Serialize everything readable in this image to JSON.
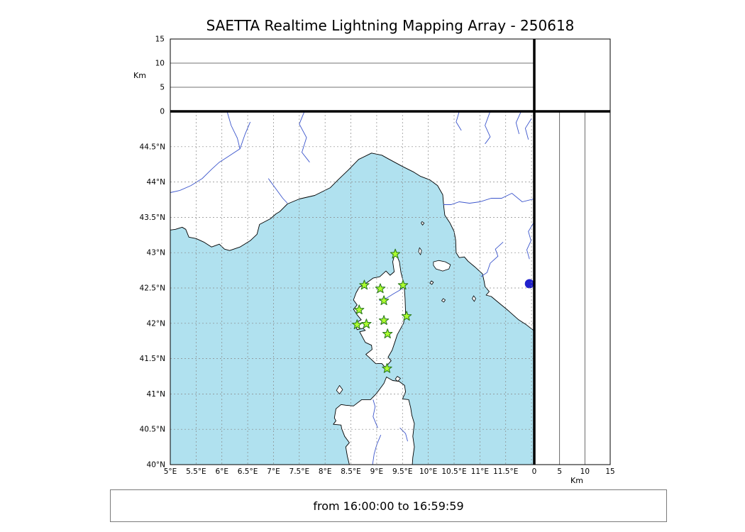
{
  "title": "SAETTA Realtime Lightning Mapping Array - 250618",
  "footer": {
    "text": "from 16:00:00 to 16:59:59"
  },
  "colors": {
    "sea": "#b0e1ef",
    "land": "#ffffff",
    "coast": "#000000",
    "river": "#3b55cc",
    "grid": "#888888",
    "lake": "#2020cc",
    "station_fill": "#adff2f",
    "station_edge": "#2c7a1e",
    "frame": "#000000",
    "alt_grid": "#444444"
  },
  "map": {
    "extent": {
      "lon_min": 5.0,
      "lon_max": 12.04,
      "lat_min": 40.0,
      "lat_max": 45.0
    },
    "grid_step_deg": 0.5,
    "x_ticks": [
      {
        "value": 5,
        "label": "5°E"
      },
      {
        "value": 5.5,
        "label": "5.5°E"
      },
      {
        "value": 6,
        "label": "6°E"
      },
      {
        "value": 6.5,
        "label": "6.5°E"
      },
      {
        "value": 7,
        "label": "7°E"
      },
      {
        "value": 7.5,
        "label": "7.5°E"
      },
      {
        "value": 8,
        "label": "8°E"
      },
      {
        "value": 8.5,
        "label": "8.5°E"
      },
      {
        "value": 9,
        "label": "9°E"
      },
      {
        "value": 9.5,
        "label": "9.5°E"
      },
      {
        "value": 10,
        "label": "10°E"
      },
      {
        "value": 10.5,
        "label": "10.5°E"
      },
      {
        "value": 11,
        "label": "11°E"
      },
      {
        "value": 11.5,
        "label": "11.5°E"
      }
    ],
    "y_ticks": [
      {
        "value": 44.5,
        "label": "44.5°N"
      },
      {
        "value": 44,
        "label": "44°N"
      },
      {
        "value": 43.5,
        "label": "43.5°N"
      },
      {
        "value": 43,
        "label": "43°N"
      },
      {
        "value": 42.5,
        "label": "42.5°N"
      },
      {
        "value": 42,
        "label": "42°N"
      },
      {
        "value": 41.5,
        "label": "41.5°N"
      },
      {
        "value": 41,
        "label": "41°N"
      },
      {
        "value": 40.5,
        "label": "40.5°N"
      },
      {
        "value": 40,
        "label": "40°N"
      }
    ],
    "stations": [
      {
        "lon": 9.36,
        "lat": 42.98
      },
      {
        "lon": 8.76,
        "lat": 42.54
      },
      {
        "lon": 9.07,
        "lat": 42.49
      },
      {
        "lon": 9.51,
        "lat": 42.54
      },
      {
        "lon": 9.14,
        "lat": 42.32
      },
      {
        "lon": 8.66,
        "lat": 42.19
      },
      {
        "lon": 9.58,
        "lat": 42.1
      },
      {
        "lon": 8.62,
        "lat": 41.98
      },
      {
        "lon": 8.8,
        "lat": 41.99
      },
      {
        "lon": 9.14,
        "lat": 42.04
      },
      {
        "lon": 9.21,
        "lat": 41.85
      },
      {
        "lon": 9.2,
        "lat": 41.36
      }
    ],
    "lake_point": {
      "lon": 11.96,
      "lat": 42.56
    }
  },
  "altitude_axis": {
    "unit_label": "Km",
    "min": 0,
    "max": 15,
    "ticks": [
      {
        "value": 0,
        "label": "0"
      },
      {
        "value": 5,
        "label": "5"
      },
      {
        "value": 10,
        "label": "10"
      },
      {
        "value": 15,
        "label": "15"
      }
    ],
    "grid_values": [
      5,
      10
    ]
  },
  "geo": {
    "mainland": [
      [
        5.0,
        43.32
      ],
      [
        5.1,
        43.33
      ],
      [
        5.23,
        43.36
      ],
      [
        5.3,
        43.33
      ],
      [
        5.36,
        43.22
      ],
      [
        5.5,
        43.2
      ],
      [
        5.65,
        43.15
      ],
      [
        5.8,
        43.08
      ],
      [
        5.95,
        43.12
      ],
      [
        6.05,
        43.05
      ],
      [
        6.15,
        43.03
      ],
      [
        6.35,
        43.08
      ],
      [
        6.55,
        43.17
      ],
      [
        6.68,
        43.26
      ],
      [
        6.73,
        43.4
      ],
      [
        6.94,
        43.48
      ],
      [
        7.05,
        43.55
      ],
      [
        7.12,
        43.58
      ],
      [
        7.27,
        43.69
      ],
      [
        7.5,
        43.76
      ],
      [
        7.8,
        43.81
      ],
      [
        8.1,
        43.92
      ],
      [
        8.25,
        44.03
      ],
      [
        8.45,
        44.17
      ],
      [
        8.65,
        44.32
      ],
      [
        8.9,
        44.41
      ],
      [
        9.1,
        44.38
      ],
      [
        9.22,
        44.33
      ],
      [
        9.5,
        44.22
      ],
      [
        9.72,
        44.14
      ],
      [
        9.85,
        44.08
      ],
      [
        10.03,
        44.03
      ],
      [
        10.18,
        43.95
      ],
      [
        10.28,
        43.82
      ],
      [
        10.3,
        43.65
      ],
      [
        10.32,
        43.53
      ],
      [
        10.42,
        43.42
      ],
      [
        10.5,
        43.3
      ],
      [
        10.53,
        43.18
      ],
      [
        10.54,
        43.0
      ],
      [
        10.6,
        42.93
      ],
      [
        10.7,
        42.94
      ],
      [
        10.77,
        42.88
      ],
      [
        10.9,
        42.8
      ],
      [
        11.05,
        42.7
      ],
      [
        11.08,
        42.6
      ],
      [
        11.1,
        42.52
      ],
      [
        11.18,
        42.45
      ],
      [
        11.12,
        42.4
      ],
      [
        11.22,
        42.38
      ],
      [
        11.35,
        42.3
      ],
      [
        11.55,
        42.18
      ],
      [
        11.75,
        42.05
      ],
      [
        11.9,
        41.98
      ],
      [
        12.04,
        41.9
      ],
      [
        12.04,
        45.0
      ],
      [
        5.0,
        45.0
      ]
    ],
    "corsica": [
      [
        9.36,
        43.01
      ],
      [
        9.44,
        42.87
      ],
      [
        9.47,
        42.72
      ],
      [
        9.53,
        42.55
      ],
      [
        9.55,
        42.35
      ],
      [
        9.56,
        42.15
      ],
      [
        9.52,
        42.0
      ],
      [
        9.4,
        41.84
      ],
      [
        9.35,
        41.73
      ],
      [
        9.3,
        41.62
      ],
      [
        9.22,
        41.52
      ],
      [
        9.28,
        41.47
      ],
      [
        9.22,
        41.42
      ],
      [
        9.16,
        41.38
      ],
      [
        9.1,
        41.43
      ],
      [
        8.98,
        41.43
      ],
      [
        8.88,
        41.5
      ],
      [
        8.79,
        41.56
      ],
      [
        8.91,
        41.63
      ],
      [
        8.9,
        41.69
      ],
      [
        8.78,
        41.73
      ],
      [
        8.67,
        41.88
      ],
      [
        8.78,
        41.9
      ],
      [
        8.73,
        41.93
      ],
      [
        8.62,
        41.91
      ],
      [
        8.58,
        42.0
      ],
      [
        8.7,
        42.05
      ],
      [
        8.62,
        42.12
      ],
      [
        8.55,
        42.2
      ],
      [
        8.62,
        42.26
      ],
      [
        8.55,
        42.33
      ],
      [
        8.6,
        42.43
      ],
      [
        8.66,
        42.51
      ],
      [
        8.8,
        42.57
      ],
      [
        8.93,
        42.64
      ],
      [
        9.06,
        42.66
      ],
      [
        9.18,
        42.74
      ],
      [
        9.26,
        42.68
      ],
      [
        9.34,
        42.73
      ],
      [
        9.31,
        42.87
      ]
    ],
    "sardinia": [
      [
        8.47,
        40.0
      ],
      [
        8.43,
        40.12
      ],
      [
        8.4,
        40.25
      ],
      [
        8.47,
        40.31
      ],
      [
        8.38,
        40.4
      ],
      [
        8.32,
        40.51
      ],
      [
        8.31,
        40.56
      ],
      [
        8.16,
        40.57
      ],
      [
        8.21,
        40.62
      ],
      [
        8.18,
        40.66
      ],
      [
        8.21,
        40.79
      ],
      [
        8.31,
        40.85
      ],
      [
        8.4,
        40.84
      ],
      [
        8.55,
        40.83
      ],
      [
        8.71,
        40.92
      ],
      [
        8.88,
        40.92
      ],
      [
        9.0,
        41.01
      ],
      [
        9.14,
        41.15
      ],
      [
        9.19,
        41.24
      ],
      [
        9.31,
        41.19
      ],
      [
        9.43,
        41.18
      ],
      [
        9.54,
        41.12
      ],
      [
        9.56,
        41.03
      ],
      [
        9.5,
        40.93
      ],
      [
        9.62,
        40.92
      ],
      [
        9.66,
        40.8
      ],
      [
        9.68,
        40.7
      ],
      [
        9.73,
        40.58
      ],
      [
        9.7,
        40.4
      ],
      [
        9.73,
        40.25
      ],
      [
        9.7,
        40.1
      ],
      [
        9.69,
        40.0
      ]
    ],
    "islands": [
      [
        [
          8.28,
          41.12
        ],
        [
          8.34,
          41.06
        ],
        [
          8.28,
          41.0
        ],
        [
          8.22,
          41.05
        ]
      ],
      [
        [
          9.4,
          41.25
        ],
        [
          9.46,
          41.22
        ],
        [
          9.41,
          41.18
        ],
        [
          9.36,
          41.21
        ]
      ],
      [
        [
          10.1,
          42.87
        ],
        [
          10.2,
          42.89
        ],
        [
          10.33,
          42.87
        ],
        [
          10.43,
          42.83
        ],
        [
          10.4,
          42.77
        ],
        [
          10.28,
          42.74
        ],
        [
          10.15,
          42.77
        ],
        [
          10.1,
          42.82
        ]
      ],
      [
        [
          9.83,
          43.07
        ],
        [
          9.87,
          43.03
        ],
        [
          9.85,
          42.97
        ],
        [
          9.81,
          43.01
        ]
      ],
      [
        [
          9.88,
          43.44
        ],
        [
          9.92,
          43.42
        ],
        [
          9.89,
          43.39
        ],
        [
          9.86,
          43.42
        ]
      ],
      [
        [
          10.06,
          42.6
        ],
        [
          10.1,
          42.58
        ],
        [
          10.07,
          42.55
        ],
        [
          10.03,
          42.57
        ]
      ],
      [
        [
          10.29,
          42.35
        ],
        [
          10.33,
          42.33
        ],
        [
          10.3,
          42.3
        ],
        [
          10.26,
          42.32
        ]
      ],
      [
        [
          10.88,
          42.39
        ],
        [
          10.92,
          42.35
        ],
        [
          10.89,
          42.31
        ],
        [
          10.85,
          42.35
        ]
      ]
    ],
    "rivers": [
      [
        [
          6.1,
          45.0
        ],
        [
          6.18,
          44.8
        ],
        [
          6.3,
          44.62
        ],
        [
          6.35,
          44.47
        ],
        [
          6.1,
          44.35
        ],
        [
          5.95,
          44.28
        ],
        [
          5.8,
          44.18
        ],
        [
          5.62,
          44.05
        ],
        [
          5.4,
          43.95
        ],
        [
          5.18,
          43.88
        ],
        [
          5.0,
          43.85
        ]
      ],
      [
        [
          6.55,
          44.85
        ],
        [
          6.45,
          44.68
        ],
        [
          6.35,
          44.47
        ]
      ],
      [
        [
          7.6,
          45.0
        ],
        [
          7.5,
          44.82
        ],
        [
          7.64,
          44.63
        ],
        [
          7.55,
          44.42
        ],
        [
          7.7,
          44.28
        ]
      ],
      [
        [
          6.9,
          44.05
        ],
        [
          7.0,
          43.95
        ],
        [
          7.1,
          43.85
        ],
        [
          7.18,
          43.77
        ],
        [
          7.27,
          43.7
        ]
      ],
      [
        [
          10.6,
          45.0
        ],
        [
          10.54,
          44.85
        ],
        [
          10.64,
          44.73
        ]
      ],
      [
        [
          11.2,
          45.0
        ],
        [
          11.1,
          44.8
        ],
        [
          11.2,
          44.64
        ],
        [
          11.1,
          44.54
        ]
      ],
      [
        [
          11.8,
          45.0
        ],
        [
          11.7,
          44.84
        ],
        [
          11.76,
          44.68
        ]
      ],
      [
        [
          12.0,
          44.9
        ],
        [
          11.88,
          44.76
        ],
        [
          11.94,
          44.6
        ]
      ],
      [
        [
          12.04,
          43.76
        ],
        [
          11.82,
          43.72
        ],
        [
          11.62,
          43.84
        ],
        [
          11.42,
          43.77
        ],
        [
          11.22,
          43.77
        ],
        [
          11.0,
          43.72
        ],
        [
          10.8,
          43.7
        ],
        [
          10.6,
          43.72
        ],
        [
          10.44,
          43.68
        ],
        [
          10.29,
          43.68
        ]
      ],
      [
        [
          12.04,
          43.42
        ],
        [
          11.94,
          43.3
        ],
        [
          11.99,
          43.17
        ],
        [
          11.91,
          43.04
        ],
        [
          11.96,
          42.91
        ]
      ],
      [
        [
          11.45,
          43.15
        ],
        [
          11.3,
          43.05
        ],
        [
          11.35,
          42.95
        ],
        [
          11.2,
          42.85
        ],
        [
          11.14,
          42.72
        ],
        [
          11.02,
          42.66
        ]
      ],
      [
        [
          9.05,
          42.32
        ],
        [
          9.2,
          42.36
        ],
        [
          9.33,
          42.42
        ],
        [
          9.45,
          42.47
        ],
        [
          9.52,
          42.51
        ]
      ],
      [
        [
          9.02,
          40.52
        ],
        [
          8.93,
          40.68
        ],
        [
          8.97,
          40.82
        ],
        [
          8.93,
          40.92
        ]
      ],
      [
        [
          9.08,
          40.42
        ],
        [
          9.0,
          40.28
        ],
        [
          8.95,
          40.15
        ],
        [
          8.92,
          40.0
        ]
      ],
      [
        [
          9.45,
          40.52
        ],
        [
          9.56,
          40.44
        ],
        [
          9.6,
          40.33
        ]
      ]
    ]
  }
}
